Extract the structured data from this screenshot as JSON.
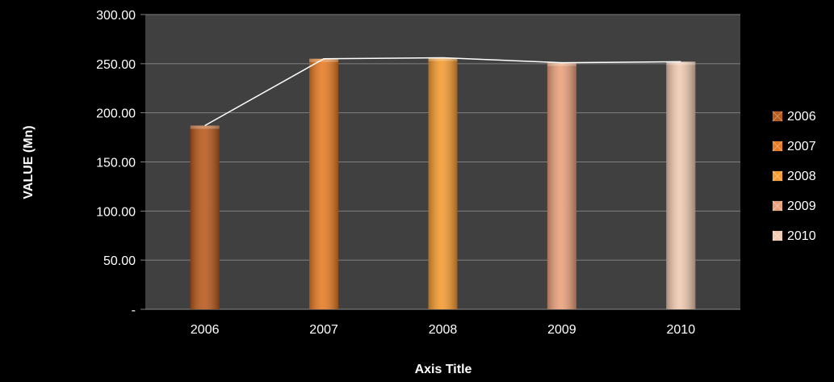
{
  "chart_data": {
    "type": "bar",
    "categories": [
      "2006",
      "2007",
      "2008",
      "2009",
      "2010"
    ],
    "values": [
      187,
      255,
      256,
      251,
      252
    ],
    "line_overlay": true,
    "xlabel": "Axis Title",
    "ylabel": "VALUE (Mn)",
    "ylim": [
      0,
      300
    ],
    "yticks": [
      0,
      50,
      100,
      150,
      200,
      250,
      300
    ],
    "ytick_labels": [
      "-",
      "50.00",
      "100.00",
      "150.00",
      "200.00",
      "250.00",
      "300.00"
    ],
    "grid": true,
    "legend": {
      "placement": "right",
      "entries": [
        "2006",
        "2007",
        "2008",
        "2009",
        "2010"
      ]
    },
    "colors": {
      "background": "#000000",
      "plot_area": "#404040",
      "gridline": "#7f7f7f",
      "line": "#ffffff",
      "bars": [
        "#b8581a",
        "#e67a22",
        "#f59a2e",
        "#e9a07a",
        "#f1c9b0"
      ]
    }
  }
}
